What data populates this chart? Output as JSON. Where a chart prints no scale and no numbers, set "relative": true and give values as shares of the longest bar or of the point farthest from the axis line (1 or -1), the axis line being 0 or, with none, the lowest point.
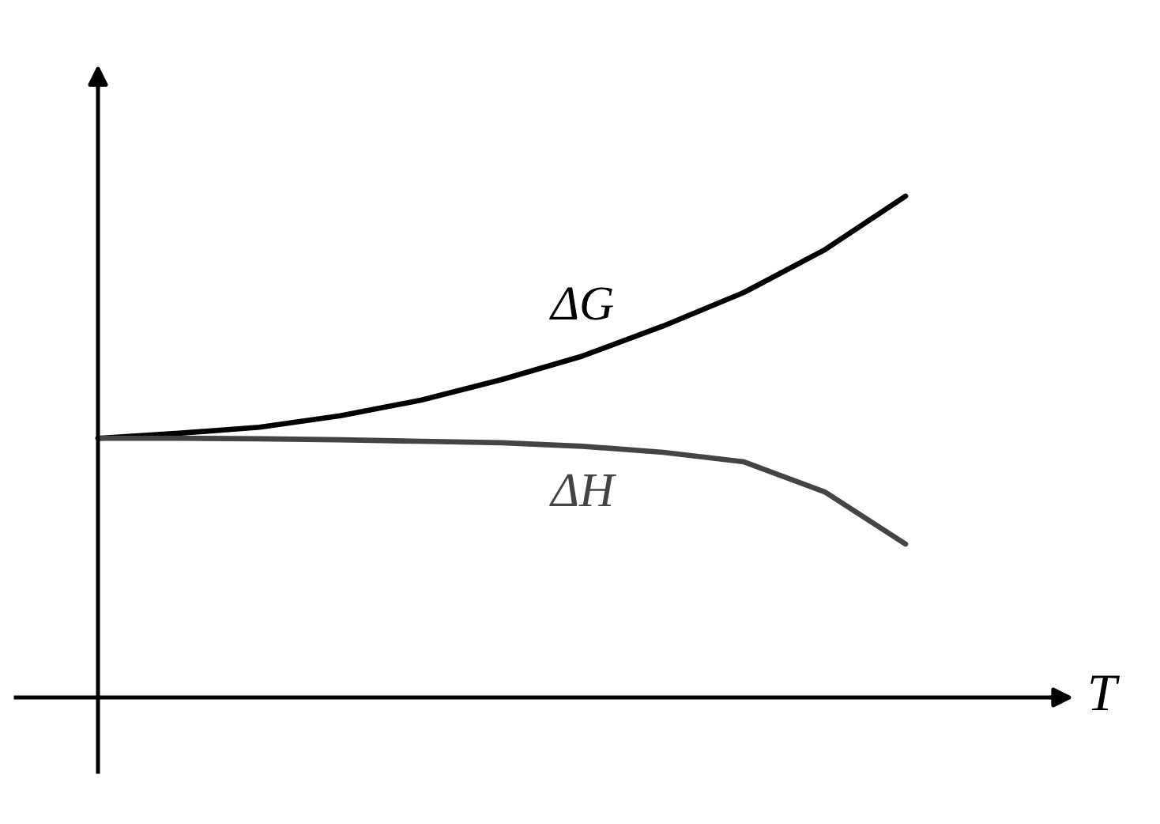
{
  "chart_data": {
    "type": "line",
    "relative": true,
    "xlabel": "T",
    "categories": [
      null,
      null,
      null,
      null,
      null,
      null,
      null,
      null,
      null,
      null,
      null
    ],
    "grid": false,
    "legend": false,
    "marker": "none",
    "line_style": "solid",
    "series": [
      {
        "name": "ΔG",
        "color": "#000000",
        "values": [
          0.517,
          0.527,
          0.539,
          0.562,
          0.593,
          0.634,
          0.681,
          0.741,
          0.808,
          0.893,
          1
        ]
      },
      {
        "name": "ΔH",
        "color": "#444444",
        "values": [
          0.517,
          0.517,
          0.516,
          0.514,
          0.511,
          0.508,
          0.501,
          0.489,
          0.47,
          0.41,
          0.306
        ]
      }
    ]
  }
}
